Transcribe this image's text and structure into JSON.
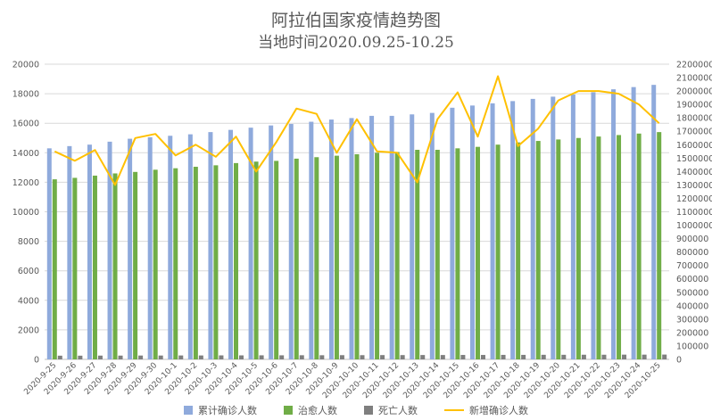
{
  "title_line1": "阿拉伯国家疫情趋势图",
  "title_line2": "当地时间2020.09.25-10.25",
  "colors": {
    "cumulative": "#8faadc",
    "recovered": "#70ad47",
    "deaths": "#7f7f7f",
    "new": "#ffc000",
    "grid": "#d9d9d9"
  },
  "chart_data": {
    "type": "bar+line",
    "categories": [
      "2020-9-25",
      "2020-9-26",
      "2020-9-27",
      "2020-9-28",
      "2020-9-29",
      "2020-9-30",
      "2020-10-1",
      "2020-10-2",
      "2020-10-3",
      "2020-10-4",
      "2020-10-5",
      "2020-10-6",
      "2020-10-7",
      "2020-10-8",
      "2020-10-9",
      "2020-10-10",
      "2020-10-11",
      "2020-10-12",
      "2020-10-13",
      "2020-10-14",
      "2020-10-15",
      "2020-10-16",
      "2020-10-17",
      "2020-10-18",
      "2020-10-19",
      "2020-10-20",
      "2020-10-21",
      "2020-10-22",
      "2020-10-23",
      "2020-10-24",
      "2020-10-25"
    ],
    "left_axis": {
      "min": 0,
      "max": 20000,
      "step": 2000,
      "ticks": [
        "0",
        "2000",
        "4000",
        "6000",
        "8000",
        "10000",
        "12000",
        "14000",
        "16000",
        "18000",
        "20000"
      ]
    },
    "right_axis": {
      "min": 0,
      "max": 2200000,
      "step": 100000,
      "ticks": [
        "0",
        "100000",
        "200000",
        "300000",
        "400000",
        "500000",
        "600000",
        "700000",
        "800000",
        "900000",
        "1000000",
        "1100000",
        "1200000",
        "1300000",
        "1400000",
        "1500000",
        "1600000",
        "1700000",
        "1800000",
        "1900000",
        "2000000",
        "2100000",
        "2200000"
      ]
    },
    "series": [
      {
        "name": "累计确诊人数",
        "axis": "left",
        "kind": "bar",
        "values": [
          14300,
          14450,
          14550,
          14750,
          14950,
          15050,
          15150,
          15250,
          15400,
          15550,
          15700,
          15850,
          15950,
          16100,
          16250,
          16350,
          16500,
          16500,
          16600,
          16700,
          17050,
          17200,
          17350,
          17500,
          17650,
          17800,
          17950,
          18100,
          18300,
          18450,
          18600
        ]
      },
      {
        "name": "治愈人数",
        "axis": "left",
        "kind": "bar",
        "values": [
          12200,
          12300,
          12450,
          12600,
          12700,
          12850,
          12950,
          13050,
          13150,
          13300,
          13400,
          13450,
          13600,
          13700,
          13800,
          13900,
          14000,
          14050,
          14200,
          14200,
          14300,
          14400,
          14550,
          14700,
          14800,
          14900,
          15000,
          15100,
          15200,
          15300,
          15400
        ]
      },
      {
        "name": "死亡人数",
        "axis": "left",
        "kind": "bar",
        "values": [
          250,
          250,
          255,
          255,
          260,
          260,
          265,
          265,
          270,
          270,
          275,
          275,
          280,
          280,
          285,
          285,
          290,
          290,
          295,
          295,
          300,
          300,
          305,
          305,
          310,
          310,
          315,
          315,
          320,
          320,
          325
        ]
      },
      {
        "name": "新增确诊人数",
        "axis": "right",
        "kind": "line",
        "values": [
          1550000,
          1480000,
          1560000,
          1300000,
          1650000,
          1680000,
          1520000,
          1600000,
          1510000,
          1660000,
          1400000,
          1620000,
          1870000,
          1830000,
          1540000,
          1790000,
          1550000,
          1540000,
          1320000,
          1790000,
          1990000,
          1660000,
          2110000,
          1590000,
          1720000,
          1930000,
          2000000,
          2000000,
          1980000,
          1900000,
          1760000
        ]
      }
    ]
  }
}
